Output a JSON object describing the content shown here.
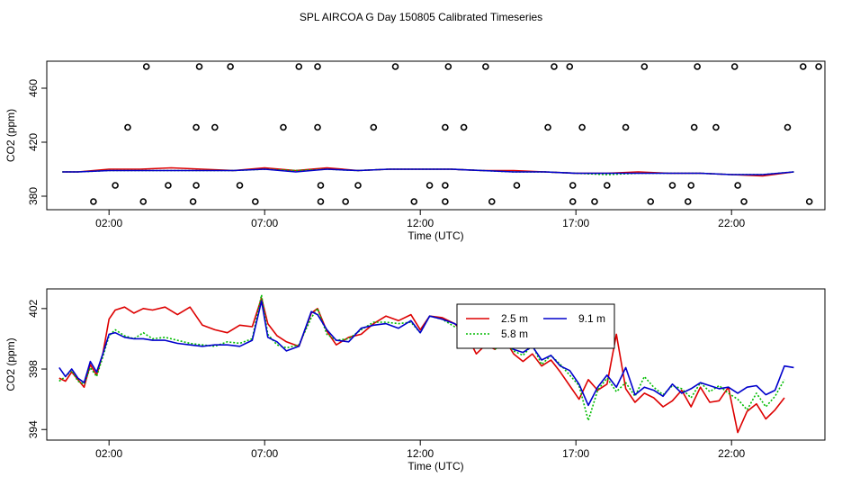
{
  "title": "SPL AIRCOA G  Day 150805  Calibrated Timeseries",
  "chart_data": [
    {
      "type": "line",
      "id": "top",
      "xlabel": "Time (UTC)",
      "ylabel": "CO2 (ppm)",
      "xlim": [
        0,
        25
      ],
      "ylim": [
        370,
        480
      ],
      "xticks": [
        2,
        7,
        12,
        17,
        22
      ],
      "xtick_labels": [
        "02:00",
        "07:00",
        "12:00",
        "17:00",
        "22:00"
      ],
      "yticks": [
        380,
        420,
        460
      ],
      "grid": false,
      "legend": null,
      "series": [
        {
          "color": "#dd0000",
          "dash": "solid",
          "x": [
            0.5,
            1,
            2,
            3,
            4,
            5,
            6,
            7,
            8,
            9,
            10,
            11,
            12,
            13,
            14,
            15,
            16,
            17,
            18,
            19,
            20,
            21,
            22,
            23,
            24
          ],
          "y": [
            398,
            398,
            400,
            400,
            401,
            400,
            399,
            401,
            399,
            401,
            399,
            400,
            400,
            400,
            399,
            399,
            398,
            397,
            397,
            398,
            397,
            397,
            396,
            395,
            398
          ]
        },
        {
          "color": "#00bb00",
          "dash": "dotted",
          "x": [
            0.5,
            1,
            2,
            3,
            4,
            5,
            6,
            7,
            8,
            9,
            10,
            11,
            12,
            13,
            14,
            15,
            16,
            17,
            18,
            19,
            20,
            21,
            22,
            23,
            24
          ],
          "y": [
            398,
            398,
            399,
            399,
            399,
            399,
            399,
            400,
            399,
            400,
            399,
            400,
            400,
            400,
            399,
            398,
            398,
            397,
            396,
            397,
            397,
            397,
            396,
            396,
            398
          ]
        },
        {
          "color": "#0000cc",
          "dash": "solid",
          "x": [
            0.5,
            1,
            2,
            3,
            4,
            5,
            6,
            7,
            8,
            9,
            10,
            11,
            12,
            13,
            14,
            15,
            16,
            17,
            18,
            19,
            20,
            21,
            22,
            23,
            24
          ],
          "y": [
            398,
            398,
            399,
            399,
            399,
            399,
            399,
            400,
            398,
            400,
            399,
            400,
            400,
            400,
            399,
            398,
            398,
            397,
            397,
            397,
            397,
            397,
            396,
            396,
            398
          ]
        },
        {
          "type": "scatter",
          "marker": "circle-open",
          "color": "#000000",
          "x": [
            3.2,
            4.9,
            5.9,
            8.1,
            8.7,
            11.2,
            12.9,
            14.1,
            16.3,
            16.8,
            19.2,
            20.9,
            22.1,
            24.3,
            24.8,
            2.6,
            4.8,
            5.4,
            7.6,
            8.7,
            10.5,
            12.8,
            13.4,
            16.1,
            17.2,
            18.6,
            20.8,
            21.5,
            23.8,
            2.2,
            3.9,
            4.8,
            6.2,
            8.8,
            10.0,
            12.3,
            12.8,
            15.1,
            16.9,
            18.0,
            20.1,
            20.7,
            22.2,
            1.5,
            3.1,
            4.7,
            6.7,
            8.8,
            9.6,
            11.8,
            12.8,
            14.3,
            16.9,
            17.6,
            19.4,
            20.6,
            22.4,
            24.5
          ],
          "y": [
            476,
            476,
            476,
            476,
            476,
            476,
            476,
            476,
            476,
            476,
            476,
            476,
            476,
            476,
            476,
            431,
            431,
            431,
            431,
            431,
            431,
            431,
            431,
            431,
            431,
            431,
            431,
            431,
            431,
            388,
            388,
            388,
            388,
            388,
            388,
            388,
            388,
            388,
            388,
            388,
            388,
            388,
            388,
            376,
            376,
            376,
            376,
            376,
            376,
            376,
            376,
            376,
            376,
            376,
            376,
            376,
            376,
            376
          ]
        }
      ]
    },
    {
      "type": "line",
      "id": "bottom",
      "xlabel": "Time (UTC)",
      "ylabel": "CO2 (ppm)",
      "xlim": [
        0,
        25
      ],
      "ylim": [
        393.3,
        403.3
      ],
      "xticks": [
        2,
        7,
        12,
        17,
        22
      ],
      "xtick_labels": [
        "02:00",
        "07:00",
        "12:00",
        "17:00",
        "22:00"
      ],
      "yticks": [
        394,
        398,
        402
      ],
      "grid": false,
      "legend": {
        "position": "top-center",
        "entries": [
          {
            "label": "2.5 m",
            "color": "#dd0000",
            "dash": "solid"
          },
          {
            "label": "9.1 m",
            "color": "#0000cc",
            "dash": "solid"
          },
          {
            "label": "5.8 m",
            "color": "#00bb00",
            "dash": "dotted"
          }
        ]
      },
      "series": [
        {
          "name": "2.5 m",
          "color": "#dd0000",
          "dash": "solid",
          "x": [
            0.4,
            0.6,
            0.8,
            1.0,
            1.2,
            1.4,
            1.6,
            1.8,
            2.0,
            2.2,
            2.5,
            2.8,
            3.1,
            3.4,
            3.8,
            4.2,
            4.6,
            5.0,
            5.4,
            5.8,
            6.2,
            6.6,
            6.9,
            7.1,
            7.4,
            7.7,
            8.1,
            8.5,
            8.7,
            9.0,
            9.3,
            9.7,
            10.1,
            10.5,
            10.9,
            11.3,
            11.7,
            12.0,
            12.3,
            12.7,
            13.1,
            13.5,
            13.8,
            14.1,
            14.4,
            14.7,
            15.0,
            15.3,
            15.6,
            15.9,
            16.2,
            16.5,
            16.8,
            17.1,
            17.4,
            17.7,
            18.0,
            18.3,
            18.6,
            18.9,
            19.2,
            19.5,
            19.8,
            20.1,
            20.4,
            20.7,
            21.0,
            21.3,
            21.6,
            21.9,
            22.2,
            22.5,
            22.8,
            23.1,
            23.4,
            23.7
          ],
          "y": [
            397.4,
            397.2,
            397.8,
            397.3,
            396.8,
            398.3,
            397.6,
            399.0,
            401.3,
            401.9,
            402.1,
            401.7,
            402.0,
            401.9,
            402.1,
            401.6,
            402.1,
            400.9,
            400.6,
            400.4,
            400.9,
            400.8,
            402.7,
            401.0,
            400.2,
            399.8,
            399.5,
            401.7,
            402.0,
            400.5,
            399.6,
            400.1,
            400.3,
            401.0,
            401.5,
            401.2,
            401.6,
            400.6,
            401.5,
            401.4,
            401.0,
            400.2,
            399.0,
            399.6,
            399.3,
            400.0,
            399.0,
            398.5,
            399.0,
            398.2,
            398.6,
            397.8,
            396.9,
            396.0,
            397.3,
            396.6,
            397.0,
            400.3,
            396.7,
            395.8,
            396.4,
            396.1,
            395.5,
            395.9,
            396.6,
            395.5,
            396.8,
            395.8,
            395.9,
            396.8,
            393.8,
            395.2,
            395.7,
            394.7,
            395.3,
            396.1
          ]
        },
        {
          "name": "5.8 m",
          "color": "#00bb00",
          "dash": "dotted",
          "x": [
            0.4,
            0.6,
            0.8,
            1.0,
            1.2,
            1.4,
            1.6,
            1.8,
            2.0,
            2.2,
            2.5,
            2.8,
            3.1,
            3.4,
            3.8,
            4.2,
            4.6,
            5.0,
            5.4,
            5.8,
            6.2,
            6.6,
            6.9,
            7.1,
            7.4,
            7.7,
            8.1,
            8.5,
            8.7,
            9.0,
            9.3,
            9.7,
            10.1,
            10.5,
            10.9,
            11.3,
            11.7,
            12.0,
            12.3,
            12.7,
            13.1,
            13.5,
            13.8,
            14.1,
            14.4,
            14.7,
            15.0,
            15.3,
            15.6,
            15.9,
            16.2,
            16.5,
            16.8,
            17.1,
            17.4,
            17.7,
            18.0,
            18.3,
            18.6,
            18.9,
            19.2,
            19.5,
            19.8,
            20.1,
            20.4,
            20.7,
            21.0,
            21.3,
            21.6,
            21.9,
            22.2,
            22.5,
            22.8,
            23.1,
            23.4,
            23.7
          ],
          "y": [
            397.2,
            397.5,
            397.9,
            397.2,
            397.0,
            398.1,
            397.5,
            398.8,
            400.2,
            400.6,
            400.2,
            400.0,
            400.4,
            400.0,
            400.1,
            399.9,
            399.7,
            399.6,
            399.5,
            399.8,
            399.7,
            400.0,
            402.9,
            400.3,
            399.6,
            399.4,
            399.6,
            401.4,
            402.0,
            400.3,
            399.9,
            400.0,
            400.6,
            401.1,
            401.1,
            401.0,
            401.1,
            400.4,
            401.5,
            401.3,
            400.8,
            400.4,
            399.6,
            399.9,
            399.3,
            399.8,
            399.2,
            398.9,
            399.6,
            398.3,
            398.9,
            398.3,
            397.6,
            396.9,
            394.6,
            396.6,
            397.4,
            396.5,
            397.1,
            396.2,
            397.5,
            396.8,
            396.3,
            396.9,
            396.7,
            396.1,
            397.1,
            396.5,
            396.9,
            396.4,
            396.0,
            395.3,
            396.4,
            395.5,
            396.2,
            397.3
          ]
        },
        {
          "name": "9.1 m",
          "color": "#0000cc",
          "dash": "solid",
          "x": [
            0.4,
            0.6,
            0.8,
            1.0,
            1.2,
            1.4,
            1.6,
            1.8,
            2.0,
            2.2,
            2.5,
            2.8,
            3.1,
            3.4,
            3.8,
            4.2,
            4.6,
            5.0,
            5.4,
            5.8,
            6.2,
            6.6,
            6.9,
            7.1,
            7.4,
            7.7,
            8.1,
            8.5,
            8.7,
            9.0,
            9.3,
            9.7,
            10.1,
            10.5,
            10.9,
            11.3,
            11.7,
            12.0,
            12.3,
            12.7,
            13.1,
            13.5,
            13.8,
            14.1,
            14.4,
            14.7,
            15.0,
            15.3,
            15.6,
            15.9,
            16.2,
            16.5,
            16.8,
            17.1,
            17.4,
            17.7,
            18.0,
            18.3,
            18.6,
            18.9,
            19.2,
            19.5,
            19.8,
            20.1,
            20.4,
            20.7,
            21.0,
            21.3,
            21.6,
            21.9,
            22.2,
            22.5,
            22.8,
            23.1,
            23.4,
            23.7,
            24.0
          ],
          "y": [
            398.1,
            397.5,
            398.0,
            397.4,
            397.1,
            398.5,
            397.8,
            399.0,
            400.3,
            400.4,
            400.1,
            400.0,
            400.0,
            399.9,
            399.9,
            399.7,
            399.6,
            399.5,
            399.6,
            399.6,
            399.5,
            399.9,
            402.5,
            400.1,
            399.8,
            399.2,
            399.5,
            401.8,
            401.6,
            400.6,
            399.9,
            399.8,
            400.7,
            400.9,
            401.0,
            400.7,
            401.2,
            400.4,
            401.5,
            401.3,
            401.0,
            400.5,
            400.0,
            399.9,
            399.5,
            399.8,
            399.3,
            399.1,
            399.5,
            398.6,
            398.9,
            398.2,
            397.9,
            397.0,
            395.6,
            396.8,
            397.6,
            396.8,
            398.1,
            396.3,
            396.8,
            396.6,
            396.2,
            397.0,
            396.4,
            396.7,
            397.1,
            396.9,
            396.7,
            396.8,
            396.4,
            396.8,
            396.9,
            396.3,
            396.6,
            398.2,
            398.1
          ]
        }
      ]
    }
  ]
}
